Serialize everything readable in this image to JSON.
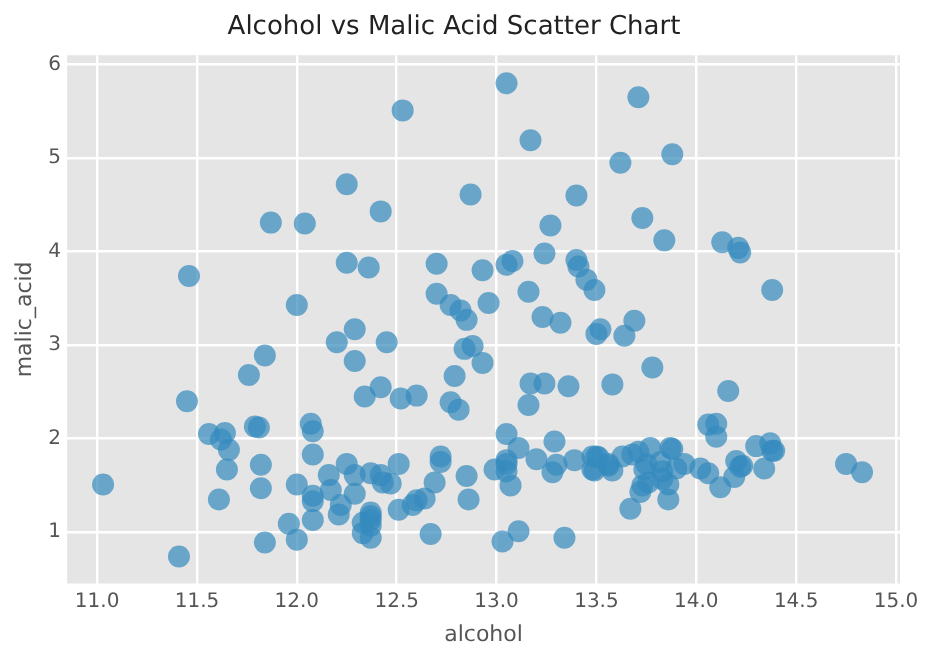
{
  "chart_data": {
    "type": "scatter",
    "title": "Alcohol vs Malic Acid Scatter Chart",
    "xlabel": "alcohol",
    "ylabel": "malic_acid",
    "xlim": [
      10.85,
      15.02
    ],
    "ylim": [
      0.45,
      6.1
    ],
    "xticks": [
      {
        "value": 11,
        "label": "11.0"
      },
      {
        "value": 11.5,
        "label": "11.5"
      },
      {
        "value": 12,
        "label": "12.0"
      },
      {
        "value": 12.5,
        "label": "12.5"
      },
      {
        "value": 13,
        "label": "13.0"
      },
      {
        "value": 13.5,
        "label": "13.5"
      },
      {
        "value": 14,
        "label": "14.0"
      },
      {
        "value": 14.5,
        "label": "14.5"
      },
      {
        "value": 15,
        "label": "15.0"
      }
    ],
    "yticks": [
      1,
      2,
      3,
      4,
      5,
      6
    ],
    "grid": true,
    "legend": false,
    "marker": "circle",
    "series": [
      {
        "color": "#348abd",
        "x": [
          14.23,
          13.2,
          13.16,
          14.37,
          13.24,
          14.2,
          14.39,
          14.06,
          14.83,
          13.86,
          14.1,
          14.12,
          13.75,
          14.75,
          14.38,
          13.63,
          14.3,
          13.83,
          14.19,
          13.64,
          14.06,
          12.93,
          13.71,
          12.85,
          13.5,
          13.05,
          13.39,
          13.3,
          13.87,
          14.02,
          13.73,
          13.58,
          13.68,
          13.76,
          13.51,
          13.48,
          13.28,
          13.05,
          13.07,
          14.22,
          13.56,
          13.41,
          13.88,
          13.24,
          13.05,
          14.21,
          14.38,
          13.9,
          14.1,
          13.94,
          13.05,
          13.83,
          13.82,
          13.77,
          13.74,
          13.56,
          14.22,
          13.29,
          13.72,
          12.37,
          12.33,
          12.64,
          13.67,
          12.37,
          12.17,
          12.37,
          13.11,
          12.37,
          13.34,
          12.21,
          12.29,
          13.86,
          13.49,
          12.99,
          11.96,
          11.66,
          13.03,
          11.84,
          12.33,
          12.7,
          12.0,
          12.72,
          12.08,
          13.05,
          11.84,
          12.67,
          12.16,
          11.65,
          11.64,
          12.08,
          12.08,
          12.0,
          12.69,
          12.29,
          11.62,
          12.47,
          11.81,
          12.29,
          12.37,
          12.29,
          12.08,
          12.6,
          12.34,
          11.82,
          12.51,
          12.42,
          12.25,
          12.72,
          12.22,
          11.61,
          11.46,
          12.52,
          11.76,
          11.41,
          12.08,
          11.03,
          11.82,
          12.42,
          12.77,
          12.0,
          11.45,
          11.56,
          12.42,
          13.05,
          11.87,
          12.07,
          12.43,
          11.79,
          12.37,
          12.04,
          12.86,
          12.88,
          12.81,
          12.7,
          12.51,
          12.6,
          12.25,
          12.53,
          13.49,
          12.84,
          12.93,
          13.36,
          13.52,
          13.62,
          12.25,
          13.16,
          13.88,
          12.87,
          13.32,
          13.08,
          13.5,
          12.79,
          13.11,
          13.23,
          12.58,
          13.17,
          13.84,
          12.45,
          14.34,
          13.48,
          12.36,
          13.69,
          12.85,
          12.96,
          13.78,
          13.73,
          13.45,
          12.82,
          13.58,
          13.4,
          12.2,
          12.77,
          14.16,
          13.71,
          13.4,
          13.27,
          13.17,
          14.13
        ],
        "values": [
          1.71,
          1.78,
          2.36,
          1.95,
          2.59,
          1.76,
          1.87,
          2.15,
          1.64,
          1.35,
          2.16,
          1.48,
          1.73,
          1.73,
          1.87,
          1.81,
          1.92,
          1.57,
          1.59,
          3.1,
          1.63,
          3.8,
          1.86,
          1.6,
          1.81,
          2.05,
          1.77,
          1.72,
          1.9,
          1.68,
          1.5,
          1.66,
          1.83,
          1.53,
          1.8,
          1.81,
          1.64,
          1.65,
          1.5,
          3.99,
          1.71,
          3.84,
          1.89,
          3.98,
          1.77,
          4.04,
          3.59,
          1.68,
          2.02,
          1.73,
          1.73,
          1.65,
          1.75,
          1.9,
          1.67,
          1.73,
          1.7,
          1.97,
          1.43,
          0.94,
          1.1,
          1.36,
          1.25,
          1.13,
          1.45,
          1.21,
          1.01,
          1.17,
          0.94,
          1.19,
          1.61,
          1.51,
          1.66,
          1.67,
          1.09,
          1.88,
          0.9,
          2.89,
          0.99,
          3.87,
          0.92,
          1.81,
          1.13,
          3.86,
          0.89,
          0.98,
          1.61,
          1.67,
          2.06,
          1.33,
          1.83,
          1.51,
          1.53,
          2.83,
          1.99,
          1.52,
          2.12,
          1.41,
          1.07,
          3.17,
          2.08,
          1.34,
          2.45,
          1.72,
          1.73,
          2.55,
          1.73,
          1.75,
          1.29,
          1.35,
          3.74,
          2.43,
          2.68,
          0.74,
          1.39,
          1.51,
          1.47,
          1.61,
          3.43,
          3.43,
          2.4,
          2.05,
          4.43,
          5.8,
          4.31,
          2.16,
          1.53,
          2.13,
          1.63,
          4.3,
          1.35,
          2.99,
          2.31,
          3.55,
          1.24,
          2.46,
          4.72,
          5.51,
          3.59,
          2.96,
          2.81,
          2.56,
          3.17,
          4.95,
          3.88,
          3.57,
          5.04,
          4.61,
          3.24,
          3.9,
          3.12,
          2.67,
          1.9,
          3.3,
          1.29,
          5.19,
          4.12,
          3.03,
          1.68,
          1.67,
          3.83,
          3.26,
          3.27,
          3.45,
          2.76,
          4.36,
          3.7,
          3.37,
          2.58,
          4.6,
          3.03,
          2.39,
          2.51,
          5.65,
          3.91,
          4.28,
          2.59,
          4.1
        ]
      }
    ]
  }
}
